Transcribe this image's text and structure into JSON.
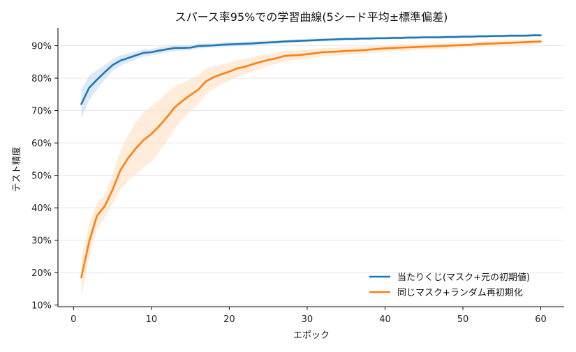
{
  "chart_data": {
    "type": "line",
    "title": "スパース率95%での学習曲線(5シード平均±標準偏差)",
    "xlabel": "エポック",
    "ylabel": "テスト精度",
    "xlim": [
      -2,
      63
    ],
    "ylim": [
      0.095,
      0.955
    ],
    "xticks": [
      0,
      10,
      20,
      30,
      40,
      50,
      60
    ],
    "xtick_labels": [
      "0",
      "10",
      "20",
      "30",
      "40",
      "50",
      "60"
    ],
    "yticks": [
      0.1,
      0.2,
      0.3,
      0.4,
      0.5,
      0.6,
      0.7,
      0.8,
      0.9
    ],
    "ytick_labels": [
      "10%",
      "20%",
      "30%",
      "40%",
      "50%",
      "60%",
      "70%",
      "80%",
      "90%"
    ],
    "grid": "horizontal",
    "legend_position": "lower-right",
    "x": [
      1,
      2,
      3,
      4,
      5,
      6,
      7,
      8,
      9,
      10,
      11,
      12,
      13,
      14,
      15,
      16,
      17,
      18,
      19,
      20,
      21,
      22,
      23,
      24,
      25,
      26,
      27,
      28,
      29,
      30,
      31,
      32,
      33,
      34,
      35,
      36,
      37,
      38,
      39,
      40,
      41,
      42,
      43,
      44,
      45,
      46,
      47,
      48,
      49,
      50,
      51,
      52,
      53,
      54,
      55,
      56,
      57,
      58,
      59,
      60
    ],
    "series": [
      {
        "name": "当たりくじ(マスク+元の初期値)",
        "color": "#1f77b4",
        "band_color": "#c6dbef",
        "values": [
          0.72,
          0.77,
          0.795,
          0.818,
          0.84,
          0.854,
          0.862,
          0.87,
          0.878,
          0.88,
          0.885,
          0.889,
          0.893,
          0.893,
          0.894,
          0.899,
          0.9,
          0.901,
          0.903,
          0.904,
          0.905,
          0.906,
          0.907,
          0.909,
          0.91,
          0.911,
          0.913,
          0.914,
          0.915,
          0.916,
          0.917,
          0.918,
          0.919,
          0.92,
          0.921,
          0.921,
          0.922,
          0.922,
          0.923,
          0.923,
          0.924,
          0.924,
          0.925,
          0.925,
          0.926,
          0.926,
          0.926,
          0.927,
          0.927,
          0.928,
          0.928,
          0.929,
          0.929,
          0.93,
          0.93,
          0.931,
          0.931,
          0.931,
          0.932,
          0.932
        ],
        "std": [
          0.045,
          0.038,
          0.03,
          0.022,
          0.018,
          0.016,
          0.014,
          0.012,
          0.012,
          0.01,
          0.01,
          0.009,
          0.009,
          0.008,
          0.008,
          0.008,
          0.007,
          0.007,
          0.007,
          0.007,
          0.006,
          0.006,
          0.006,
          0.006,
          0.006,
          0.005,
          0.005,
          0.005,
          0.005,
          0.005,
          0.005,
          0.005,
          0.005,
          0.004,
          0.004,
          0.004,
          0.004,
          0.004,
          0.004,
          0.004,
          0.004,
          0.004,
          0.004,
          0.004,
          0.004,
          0.004,
          0.004,
          0.004,
          0.004,
          0.004,
          0.004,
          0.004,
          0.004,
          0.004,
          0.004,
          0.004,
          0.004,
          0.004,
          0.004,
          0.004
        ]
      },
      {
        "name": "同じマスク+ランダム再初期化",
        "color": "#ff7f0e",
        "band_color": "#ffdfc2",
        "values": [
          0.185,
          0.295,
          0.375,
          0.405,
          0.455,
          0.515,
          0.553,
          0.583,
          0.609,
          0.628,
          0.652,
          0.68,
          0.71,
          0.73,
          0.748,
          0.764,
          0.79,
          0.803,
          0.812,
          0.82,
          0.83,
          0.835,
          0.843,
          0.85,
          0.856,
          0.861,
          0.868,
          0.87,
          0.871,
          0.874,
          0.877,
          0.88,
          0.881,
          0.882,
          0.884,
          0.885,
          0.886,
          0.888,
          0.89,
          0.892,
          0.893,
          0.894,
          0.895,
          0.896,
          0.897,
          0.898,
          0.899,
          0.9,
          0.901,
          0.902,
          0.903,
          0.905,
          0.906,
          0.907,
          0.908,
          0.909,
          0.91,
          0.911,
          0.912,
          0.913
        ],
        "std": [
          0.06,
          0.05,
          0.04,
          0.035,
          0.045,
          0.06,
          0.07,
          0.08,
          0.085,
          0.085,
          0.08,
          0.075,
          0.065,
          0.055,
          0.05,
          0.045,
          0.04,
          0.035,
          0.03,
          0.028,
          0.026,
          0.024,
          0.022,
          0.02,
          0.018,
          0.017,
          0.016,
          0.015,
          0.014,
          0.014,
          0.013,
          0.013,
          0.012,
          0.012,
          0.012,
          0.011,
          0.011,
          0.011,
          0.01,
          0.01,
          0.01,
          0.01,
          0.01,
          0.009,
          0.009,
          0.009,
          0.009,
          0.009,
          0.009,
          0.008,
          0.008,
          0.008,
          0.008,
          0.008,
          0.008,
          0.008,
          0.008,
          0.008,
          0.007,
          0.007
        ]
      }
    ]
  }
}
